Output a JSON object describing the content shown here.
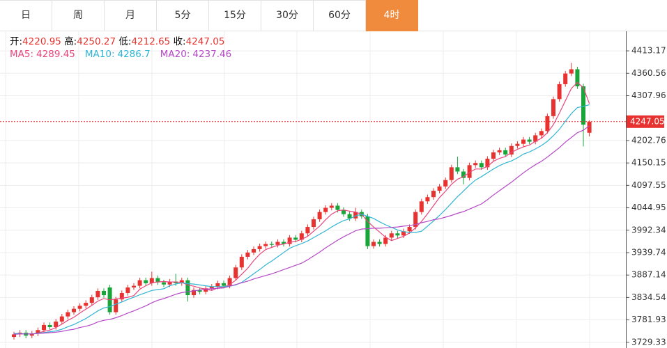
{
  "chart_data": {
    "type": "candlestick",
    "tabs": [
      "日",
      "周",
      "月",
      "5分",
      "15分",
      "30分",
      "60分",
      "4时"
    ],
    "active_tab": 7,
    "info_labels": [
      "开:",
      "高:",
      "低:",
      "收:"
    ],
    "name_separator": ":",
    "up_color": "#e8322f",
    "down_color": "#1aa53b",
    "grid": true,
    "ylim": [
      3716,
      4459
    ],
    "yticks": [
      3729.33,
      3781.93,
      3834.54,
      3887.14,
      3939.74,
      3992.34,
      4044.95,
      4097.55,
      4150.15,
      4202.76,
      4307.96,
      4360.56,
      4413.17
    ],
    "open": [
      3742,
      3748,
      3752,
      3745,
      3750,
      3758,
      3770,
      3765,
      3778,
      3790,
      3800,
      3808,
      3815,
      3822,
      3835,
      3850,
      3858,
      3800,
      3830,
      3845,
      3858,
      3862,
      3875,
      3868,
      3880,
      3870,
      3865,
      3872,
      3868,
      3875,
      3840,
      3852,
      3848,
      3856,
      3860,
      3868,
      3862,
      3880,
      3905,
      3930,
      3940,
      3948,
      3955,
      3960,
      3958,
      3965,
      3960,
      3975,
      3970,
      3985,
      4000,
      4018,
      4035,
      4045,
      4050,
      4040,
      4030,
      4020,
      4035,
      4025,
      3955,
      3965,
      3960,
      3975,
      3985,
      3980,
      3990,
      4000,
      4035,
      4060,
      4070,
      4085,
      4095,
      4110,
      4140,
      4130,
      4115,
      4145,
      4150,
      4140,
      4160,
      4175,
      4180,
      4170,
      4190,
      4195,
      4205,
      4200,
      4215,
      4225,
      4260,
      4300,
      4335,
      4360,
      4370,
      4330,
      4220.95
    ],
    "high": [
      3754,
      3758,
      3758,
      3756,
      3764,
      3776,
      3776,
      3784,
      3796,
      3806,
      3814,
      3821,
      3828,
      3841,
      3856,
      3856,
      3864,
      3836,
      3851,
      3864,
      3868,
      3881,
      3881,
      3895,
      3886,
      3876,
      3878,
      3890,
      3881,
      3881,
      3858,
      3858,
      3862,
      3866,
      3874,
      3874,
      3886,
      3911,
      3936,
      3946,
      3954,
      3961,
      3966,
      3966,
      3971,
      3971,
      3981,
      3981,
      3991,
      4006,
      4024,
      4041,
      4051,
      4056,
      4056,
      4046,
      4036,
      4045,
      4041,
      4031,
      3971,
      3971,
      3981,
      3991,
      3991,
      3996,
      4006,
      4041,
      4066,
      4076,
      4091,
      4101,
      4116,
      4146,
      4165,
      4136,
      4151,
      4156,
      4156,
      4166,
      4181,
      4186,
      4186,
      4196,
      4201,
      4211,
      4211,
      4221,
      4231,
      4266,
      4306,
      4341,
      4366,
      4385,
      4376,
      4336,
      4250.27
    ],
    "low": [
      3736,
      3742,
      3739,
      3739,
      3744,
      3752,
      3759,
      3759,
      3772,
      3784,
      3794,
      3802,
      3809,
      3816,
      3829,
      3834,
      3794,
      3794,
      3824,
      3839,
      3852,
      3856,
      3862,
      3862,
      3864,
      3859,
      3859,
      3862,
      3862,
      3825,
      3834,
      3842,
      3842,
      3850,
      3854,
      3856,
      3856,
      3874,
      3899,
      3924,
      3934,
      3942,
      3949,
      3952,
      3952,
      3954,
      3954,
      3964,
      3964,
      3979,
      3994,
      4012,
      4029,
      4039,
      4034,
      4024,
      4014,
      4014,
      4019,
      3948,
      3949,
      3954,
      3954,
      3969,
      3974,
      3974,
      3984,
      3994,
      4029,
      4054,
      4064,
      4079,
      4089,
      4104,
      4124,
      4100,
      4109,
      4139,
      4134,
      4134,
      4154,
      4169,
      4164,
      4164,
      4184,
      4189,
      4194,
      4194,
      4209,
      4219,
      4254,
      4294,
      4329,
      4354,
      4324,
      4189,
      4212.65
    ],
    "close": [
      3748,
      3752,
      3745,
      3750,
      3758,
      3770,
      3765,
      3778,
      3790,
      3800,
      3808,
      3815,
      3822,
      3835,
      3850,
      3840,
      3800,
      3830,
      3845,
      3858,
      3862,
      3875,
      3868,
      3880,
      3870,
      3865,
      3872,
      3868,
      3875,
      3840,
      3852,
      3848,
      3856,
      3860,
      3868,
      3862,
      3880,
      3905,
      3930,
      3940,
      3948,
      3955,
      3960,
      3958,
      3965,
      3960,
      3975,
      3970,
      3985,
      4000,
      4018,
      4035,
      4045,
      4050,
      4040,
      4030,
      4020,
      4035,
      4025,
      3955,
      3965,
      3960,
      3975,
      3985,
      3980,
      3990,
      4000,
      4035,
      4060,
      4070,
      4085,
      4095,
      4110,
      4140,
      4130,
      4115,
      4145,
      4150,
      4140,
      4160,
      4175,
      4180,
      4170,
      4190,
      4195,
      4205,
      4200,
      4215,
      4225,
      4260,
      4300,
      4335,
      4360,
      4370,
      4330,
      4240,
      4247.05
    ],
    "series": [
      {
        "name": "MA5",
        "color": "#e8457c",
        "values": [
          3750,
          3750,
          3749,
          3749,
          3751,
          3755,
          3758,
          3764,
          3772,
          3781,
          3788,
          3798,
          3807,
          3816,
          3826,
          3832,
          3829,
          3831,
          3833,
          3835,
          3839,
          3854,
          3862,
          3869,
          3871,
          3872,
          3871,
          3871,
          3870,
          3864,
          3861,
          3857,
          3854,
          3851,
          3857,
          3859,
          3865,
          3875,
          3889,
          3903,
          3921,
          3936,
          3947,
          3952,
          3957,
          3960,
          3964,
          3966,
          3971,
          3978,
          3990,
          4002,
          4017,
          4030,
          4038,
          4040,
          4037,
          4035,
          4030,
          4013,
          4000,
          3988,
          3976,
          3968,
          3973,
          3978,
          3986,
          3998,
          4013,
          4031,
          4050,
          4069,
          4084,
          4100,
          4112,
          4118,
          4128,
          4136,
          4136,
          4142,
          4154,
          4161,
          4165,
          4175,
          4182,
          4188,
          4192,
          4201,
          4208,
          4221,
          4240,
          4267,
          4296,
          4325,
          4339,
          4327,
          4289.45
        ]
      },
      {
        "name": "MA10",
        "color": "#2fb5d4",
        "values": [
          3750,
          3750,
          3749,
          3749,
          3751,
          3752,
          3754,
          3756,
          3760,
          3766,
          3771,
          3778,
          3785,
          3794,
          3803,
          3810,
          3813,
          3819,
          3824,
          3830,
          3835,
          3841,
          3846,
          3851,
          3853,
          3855,
          3862,
          3866,
          3869,
          3867,
          3866,
          3864,
          3862,
          3860,
          3860,
          3860,
          3861,
          3864,
          3870,
          3880,
          3890,
          3900,
          3911,
          3920,
          3930,
          3940,
          3950,
          3956,
          3961,
          3967,
          3975,
          3983,
          3991,
          4000,
          4008,
          4015,
          4019,
          4026,
          4030,
          4025,
          4020,
          4012,
          4005,
          3999,
          3993,
          3989,
          3987,
          3987,
          3990,
          4002,
          4014,
          4027,
          4041,
          4056,
          4071,
          4084,
          4098,
          4110,
          4118,
          4127,
          4136,
          4144,
          4150,
          4155,
          4162,
          4171,
          4176,
          4183,
          4191,
          4201,
          4214,
          4229,
          4248,
          4266,
          4280,
          4283,
          4286.7
        ]
      },
      {
        "name": "MA20",
        "color": "#b548c6",
        "values": [
          3748,
          3749,
          3749,
          3749,
          3750,
          3751,
          3752,
          3753,
          3755,
          3758,
          3760,
          3764,
          3767,
          3771,
          3777,
          3781,
          3783,
          3787,
          3792,
          3798,
          3803,
          3809,
          3815,
          3822,
          3828,
          3832,
          3837,
          3842,
          3846,
          3848,
          3850,
          3852,
          3854,
          3855,
          3856,
          3857,
          3861,
          3865,
          3869,
          3873,
          3878,
          3882,
          3886,
          3890,
          3895,
          3900,
          3905,
          3910,
          3915,
          3923,
          3932,
          3941,
          3951,
          3960,
          3969,
          3977,
          3984,
          3991,
          3995,
          3996,
          3997,
          3997,
          3998,
          3999,
          4000,
          4002,
          4003,
          4006,
          4010,
          4013,
          4017,
          4019,
          4023,
          4027,
          4032,
          4036,
          4042,
          4048,
          4054,
          4064,
          4075,
          4085,
          4095,
          4105,
          4116,
          4127,
          4137,
          4146,
          4154,
          4164,
          4175,
          4186,
          4199,
          4210,
          4221,
          4227,
          4237.46
        ]
      }
    ]
  }
}
